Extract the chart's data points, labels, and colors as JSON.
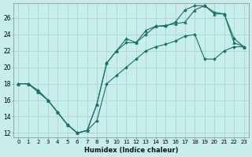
{
  "xlabel": "Humidex (Indice chaleur)",
  "background_color": "#c8eeec",
  "grid_color": "#aad4d2",
  "line_color": "#1a6e62",
  "xlim": [
    -0.5,
    23.5
  ],
  "ylim": [
    11.5,
    27.8
  ],
  "xticks": [
    0,
    1,
    2,
    3,
    4,
    5,
    6,
    7,
    8,
    9,
    10,
    11,
    12,
    13,
    14,
    15,
    16,
    17,
    18,
    19,
    20,
    21,
    22,
    23
  ],
  "yticks": [
    12,
    14,
    16,
    18,
    20,
    22,
    24,
    26
  ],
  "line1_x": [
    0,
    1,
    2,
    3,
    4,
    5,
    6,
    7,
    8,
    9,
    10,
    11,
    12,
    13,
    14,
    15,
    16,
    17,
    18,
    19,
    20,
    21,
    22,
    23
  ],
  "line1_y": [
    18.0,
    18.0,
    17.0,
    16.0,
    14.5,
    13.0,
    12.0,
    12.3,
    15.5,
    20.5,
    22.0,
    23.5,
    23.0,
    24.5,
    25.0,
    25.1,
    25.3,
    25.5,
    27.0,
    27.5,
    26.5,
    26.5,
    23.0,
    22.5
  ],
  "line2_x": [
    0,
    1,
    2,
    3,
    4,
    5,
    6,
    7,
    8,
    9,
    10,
    11,
    12,
    13,
    14,
    15,
    16,
    17,
    18,
    19,
    20,
    21,
    22,
    23
  ],
  "line2_y": [
    18.0,
    18.0,
    17.0,
    16.0,
    14.5,
    13.0,
    12.0,
    12.3,
    15.5,
    20.5,
    22.0,
    23.0,
    23.0,
    24.0,
    25.0,
    25.0,
    25.5,
    27.0,
    27.5,
    27.5,
    26.7,
    26.5,
    23.5,
    22.5
  ],
  "line3_x": [
    0,
    1,
    2,
    3,
    4,
    5,
    6,
    7,
    8,
    9,
    10,
    11,
    12,
    13,
    14,
    15,
    16,
    17,
    18,
    19,
    20,
    21,
    22,
    23
  ],
  "line3_y": [
    18.0,
    18.0,
    17.2,
    16.0,
    14.5,
    13.0,
    12.0,
    12.3,
    13.5,
    18.0,
    19.0,
    20.0,
    21.0,
    22.0,
    22.5,
    22.8,
    23.2,
    23.8,
    24.0,
    21.0,
    21.0,
    22.0,
    22.5,
    22.5
  ]
}
